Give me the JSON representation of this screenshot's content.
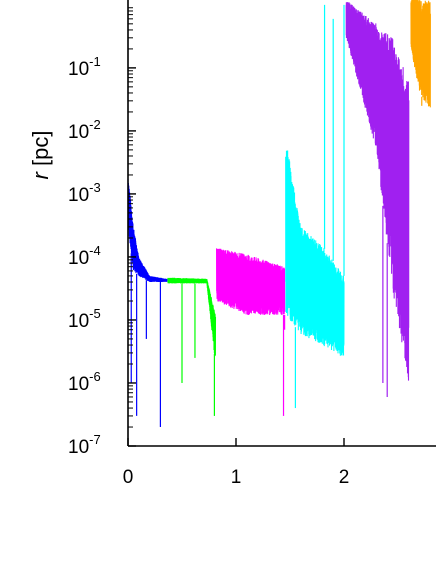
{
  "chart_data": {
    "type": "line",
    "title": "",
    "ylabel_var": "r",
    "ylabel_unit": "[pc]",
    "xlabel": "",
    "yscale": "log",
    "ylim": [
      1e-07,
      1.6
    ],
    "xlim": [
      -0.05,
      2.8
    ],
    "x_ticks": [
      "0",
      "1",
      "2"
    ],
    "y_ticks": [
      {
        "base": "10",
        "exp": "-1"
      },
      {
        "base": "10",
        "exp": "-2"
      },
      {
        "base": "10",
        "exp": "-3"
      },
      {
        "base": "10",
        "exp": "-4"
      },
      {
        "base": "10",
        "exp": "-5"
      },
      {
        "base": "10",
        "exp": "-6"
      },
      {
        "base": "10",
        "exp": "-7"
      }
    ],
    "grid": false,
    "series": [
      {
        "color": "#0000ff",
        "segments": [
          [
            0.0,
            0.1
          ],
          [
            0.1,
            0.36
          ]
        ],
        "envelope": [
          {
            "x": 0.0,
            "y_max": 0.002,
            "y_min": 0.0003
          },
          {
            "x": 0.05,
            "y_max": 0.0003,
            "y_min": 6e-05
          },
          {
            "x": 0.1,
            "y_max": 0.0001,
            "y_min": 5e-05
          },
          {
            "x": 0.2,
            "y_max": 5e-05,
            "y_min": 4e-05
          },
          {
            "x": 0.36,
            "y_max": 4.5e-05,
            "y_min": 4e-05
          }
        ],
        "dips": [
          [
            0.03,
            1e-06
          ],
          [
            0.08,
            3e-07
          ],
          [
            0.17,
            5e-06
          ],
          [
            0.3,
            2e-07
          ]
        ]
      },
      {
        "color": "#00ff00",
        "segments": [
          [
            0.37,
            0.73
          ],
          [
            0.73,
            0.81
          ]
        ],
        "envelope": [
          {
            "x": 0.37,
            "y_max": 4.7e-05,
            "y_min": 3.8e-05
          },
          {
            "x": 0.73,
            "y_max": 4.5e-05,
            "y_min": 3.8e-05
          },
          {
            "x": 0.81,
            "y_max": 1.2e-05,
            "y_min": 2e-06
          }
        ],
        "dips": [
          [
            0.5,
            1e-06
          ],
          [
            0.62,
            2.5e-06
          ],
          [
            0.8,
            3e-07
          ]
        ]
      },
      {
        "color": "#ff00ff",
        "segments": [
          [
            0.82,
            1.45
          ]
        ],
        "envelope": [
          {
            "x": 0.82,
            "y_max": 0.00014,
            "y_min": 2e-05
          },
          {
            "x": 1.1,
            "y_max": 0.00011,
            "y_min": 1.2e-05
          },
          {
            "x": 1.45,
            "y_max": 7e-05,
            "y_min": 1.2e-05
          }
        ],
        "dips": [
          [
            1.45,
            7e-06
          ],
          [
            1.44,
            3e-07
          ]
        ]
      },
      {
        "color": "#00ffff",
        "segments": [
          [
            1.46,
            2.0
          ]
        ],
        "envelope": [
          {
            "x": 1.46,
            "y_max": 0.008,
            "y_min": 1.2e-05
          },
          {
            "x": 1.6,
            "y_max": 0.0003,
            "y_min": 6e-06
          },
          {
            "x": 1.8,
            "y_max": 0.00015,
            "y_min": 4e-06
          },
          {
            "x": 2.0,
            "y_max": 5e-05,
            "y_min": 2.5e-06
          }
        ],
        "dips": [
          [
            1.55,
            4e-07
          ]
        ],
        "spikes": [
          [
            1.82,
            1.0
          ],
          [
            1.9,
            0.6
          ],
          [
            2.0,
            1.0
          ]
        ]
      },
      {
        "color": "#a020f0",
        "segments": [
          [
            2.02,
            2.6
          ]
        ],
        "envelope": [
          {
            "x": 2.02,
            "y_max": 1.2,
            "y_min": 0.3
          },
          {
            "x": 2.3,
            "y_max": 0.5,
            "y_min": 0.005
          },
          {
            "x": 2.45,
            "y_max": 0.3,
            "y_min": 3e-05
          },
          {
            "x": 2.6,
            "y_max": 0.06,
            "y_min": 1e-06
          }
        ],
        "dips": [
          [
            2.36,
            1e-06
          ],
          [
            2.4,
            6e-07
          ]
        ]
      },
      {
        "color": "#ffa500",
        "segments": [
          [
            2.62,
            2.8
          ]
        ],
        "envelope": [
          {
            "x": 2.62,
            "y_max": 1.4,
            "y_min": 0.2
          },
          {
            "x": 2.7,
            "y_max": 1.2,
            "y_min": 0.04
          },
          {
            "x": 2.8,
            "y_max": 1.2,
            "y_min": 0.02
          }
        ],
        "dips": [
          [
            2.72,
            0.025
          ]
        ]
      }
    ]
  }
}
